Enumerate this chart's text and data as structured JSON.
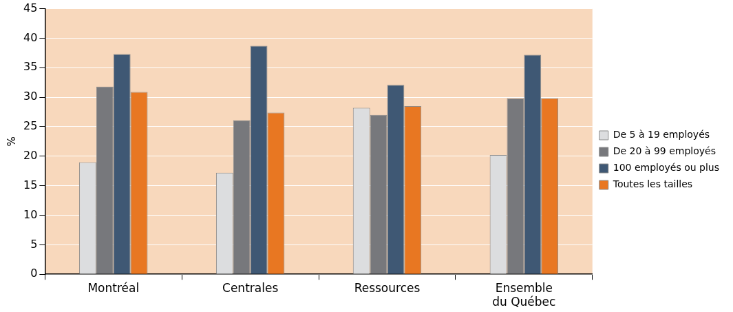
{
  "chart_data": {
    "type": "bar",
    "ylabel": "%",
    "categories": [
      "Montréal",
      "Centrales",
      "Ressources",
      "Ensemble\ndu Québec"
    ],
    "series": [
      {
        "name": "De 5 à 19 employés",
        "color": "#dcdddf",
        "values": [
          19.0,
          17.2,
          28.2,
          20.2
        ]
      },
      {
        "name": "De 20 à 99 employés",
        "color": "#77787c",
        "values": [
          31.8,
          26.1,
          27.0,
          29.8
        ]
      },
      {
        "name": "100 employés ou plus",
        "color": "#3f5874",
        "values": [
          37.3,
          38.7,
          32.1,
          37.2
        ]
      },
      {
        "name": "Toutes les tailles",
        "color": "#e87722",
        "values": [
          30.9,
          27.4,
          28.5,
          29.8
        ]
      }
    ],
    "ylim": [
      0,
      45
    ],
    "yticks": [
      0,
      5,
      10,
      15,
      20,
      25,
      30,
      35,
      40,
      45
    ],
    "grid": "y",
    "legend": "right"
  }
}
